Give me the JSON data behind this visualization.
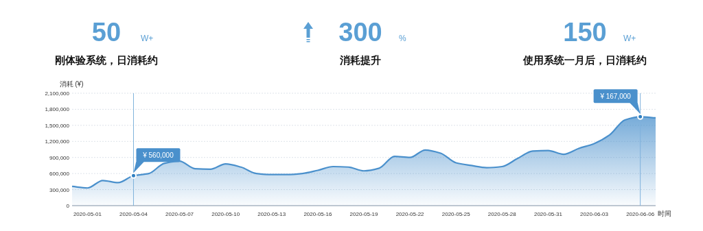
{
  "chart_data": {
    "type": "area",
    "ylabel": "消耗 (¥)",
    "xlabel": "时间",
    "categories": [
      null,
      "2020-05-01",
      null,
      null,
      "2020-05-04",
      null,
      null,
      "2020-05-07",
      null,
      null,
      "2020-05-10",
      null,
      null,
      "2020-05-13",
      null,
      null,
      "2020-05-16",
      null,
      null,
      "2020-05-19",
      null,
      null,
      "2020-05-22",
      null,
      null,
      "2020-05-25",
      null,
      null,
      "2020-05-28",
      null,
      null,
      "2020-05-31",
      null,
      null,
      "2020-06-03",
      null,
      null,
      "2020-06-06",
      null
    ],
    "series": [
      {
        "color": "#4a90cc",
        "values": [
          360000,
          330000,
          470000,
          430000,
          560000,
          600000,
          790000,
          830000,
          690000,
          680000,
          780000,
          720000,
          600000,
          580000,
          580000,
          600000,
          660000,
          730000,
          720000,
          650000,
          700000,
          920000,
          900000,
          1040000,
          980000,
          800000,
          750000,
          710000,
          730000,
          880000,
          1020000,
          1030000,
          960000,
          1070000,
          1160000,
          1320000,
          1600000,
          1660000,
          1640000
        ]
      }
    ],
    "ylim": [
      0,
      2100000
    ],
    "yticks": [
      {
        "value": 0,
        "label": "0"
      },
      {
        "value": 300000,
        "label": "300,000"
      },
      {
        "value": 600000,
        "label": "600,000"
      },
      {
        "value": 900000,
        "label": "900,000"
      },
      {
        "value": 1200000,
        "label": "1,200,000"
      },
      {
        "value": 1500000,
        "label": "1,500,000"
      },
      {
        "value": 1800000,
        "label": "1,800,000"
      },
      {
        "value": 2100000,
        "label": "2,100,000"
      }
    ],
    "grid": "y",
    "ref_lines": [
      {
        "axis": "x",
        "value": "2020-05-04",
        "color": "#7fb2dc"
      },
      {
        "axis": "x",
        "value": "2020-06-06",
        "color": "#7fb2dc"
      }
    ],
    "annotations": [
      "50",
      "W+",
      "刚体验系统，日消耗约",
      "300",
      "%",
      "消耗提升",
      "150",
      "W+",
      "使用系统一月后，日消耗约",
      {
        "text": "¥ 560,000",
        "x": "2020-05-04",
        "y": 560000
      },
      {
        "text": "¥ 167,000",
        "x": "2020-06-06",
        "y": 1660000
      }
    ]
  }
}
